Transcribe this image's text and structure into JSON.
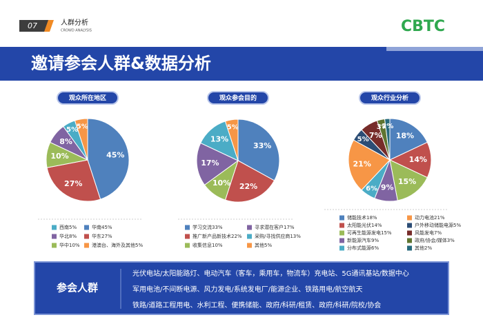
{
  "header": {
    "number": "07",
    "title": "人群分析",
    "subtitle": "CROWD ANALYSIS",
    "logo": "CBTC"
  },
  "banner": {
    "title": "邀请参会人群&数据分析"
  },
  "chart_data": [
    {
      "type": "pie",
      "title": "观众所在地区",
      "categories": [
        "华南45%",
        "华东27%",
        "华中10%",
        "华北8%",
        "西南5%",
        "港澳台、海外及其他5%"
      ],
      "values": [
        45,
        27,
        10,
        8,
        5,
        5
      ],
      "value_labels": [
        "45%",
        "27%",
        "10%",
        "8%",
        "5%",
        "5%"
      ],
      "colors": [
        "#4f81bd",
        "#c0504d",
        "#9bbb59",
        "#8064a2",
        "#4bacc6",
        "#f79646"
      ]
    },
    {
      "type": "pie",
      "title": "观众参会目的",
      "categories": [
        "学习交流33%",
        "推广新产品新技术22%",
        "收集信息10%",
        "寻求潜在客户17%",
        "采购/寻找供应商13%",
        "其他5%"
      ],
      "values": [
        33,
        22,
        10,
        17,
        13,
        5
      ],
      "value_labels": [
        "33%",
        "22%",
        "10%",
        "17%",
        "13%",
        "5%"
      ],
      "colors": [
        "#4f81bd",
        "#c0504d",
        "#9bbb59",
        "#8064a2",
        "#4bacc6",
        "#f79646"
      ]
    },
    {
      "type": "pie",
      "title": "观众行业分析",
      "categories": [
        "储能技术18%",
        "太阳能光伏14%",
        "可再生能源发电15%",
        "新能源汽车9%",
        "分布式能源6%",
        "动力电池21%",
        "户外移动储能电源5%",
        "风能发电7%",
        "政府/协会/媒体3%",
        "其他2%"
      ],
      "values": [
        18,
        14,
        15,
        9,
        6,
        21,
        5,
        7,
        3,
        2
      ],
      "value_labels": [
        "18%",
        "14%",
        "15%",
        "9%",
        "6%",
        "21%",
        "5%",
        "7%",
        "3%",
        "2%"
      ],
      "colors": [
        "#4f81bd",
        "#c0504d",
        "#9bbb59",
        "#8064a2",
        "#4bacc6",
        "#f79646",
        "#2c4d75",
        "#772c2a",
        "#5f7530",
        "#276a7c"
      ]
    }
  ],
  "audience": {
    "label": "参会人群",
    "lines": [
      "光伏电站/太阳能路灯、电动汽车（客车，乘用车，物流车）充电站、5G通讯基站/数据中心",
      "军用电池/不间断电源、风力发电/系统发电厂/能源企业、铁路用电/航空航天",
      "铁路/道路工程用电、水利工程、便携储能、政府/科研/租赁、政府/科研/院校/协会"
    ]
  }
}
